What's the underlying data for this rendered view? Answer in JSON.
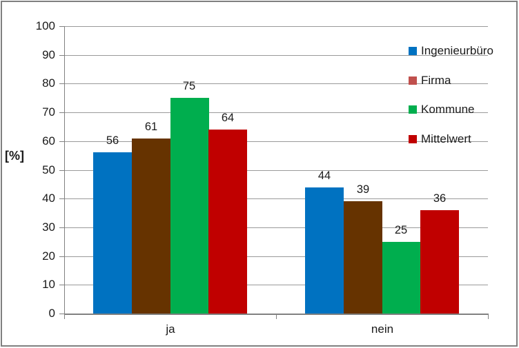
{
  "chart_data": {
    "type": "bar",
    "title": "",
    "ylabel": "[%]",
    "xlabel": "",
    "categories": [
      "ja",
      "nein"
    ],
    "series": [
      {
        "name": "Ingenieurbüro",
        "color": "#0072C1",
        "legend_swatch": "#0072C1",
        "values": [
          56,
          44
        ]
      },
      {
        "name": "Firma",
        "color": "#663300",
        "legend_swatch": "#C0504D",
        "values": [
          61,
          39
        ]
      },
      {
        "name": "Kommune",
        "color": "#00AE4E",
        "legend_swatch": "#00AE4E",
        "values": [
          75,
          25
        ]
      },
      {
        "name": "Mittelwert",
        "color": "#C00000",
        "legend_swatch": "#C00000",
        "values": [
          64,
          36
        ]
      }
    ],
    "ylim": [
      0,
      100
    ],
    "ytick_step": 10,
    "grid": true,
    "data_labels": true,
    "legend_position": "right-overlay",
    "style_colors": {
      "grid": "#999999",
      "axis": "#808080",
      "frame_border": "#7F7F7F",
      "text": "#1A1A1A",
      "background": "#FFFFFF"
    }
  }
}
